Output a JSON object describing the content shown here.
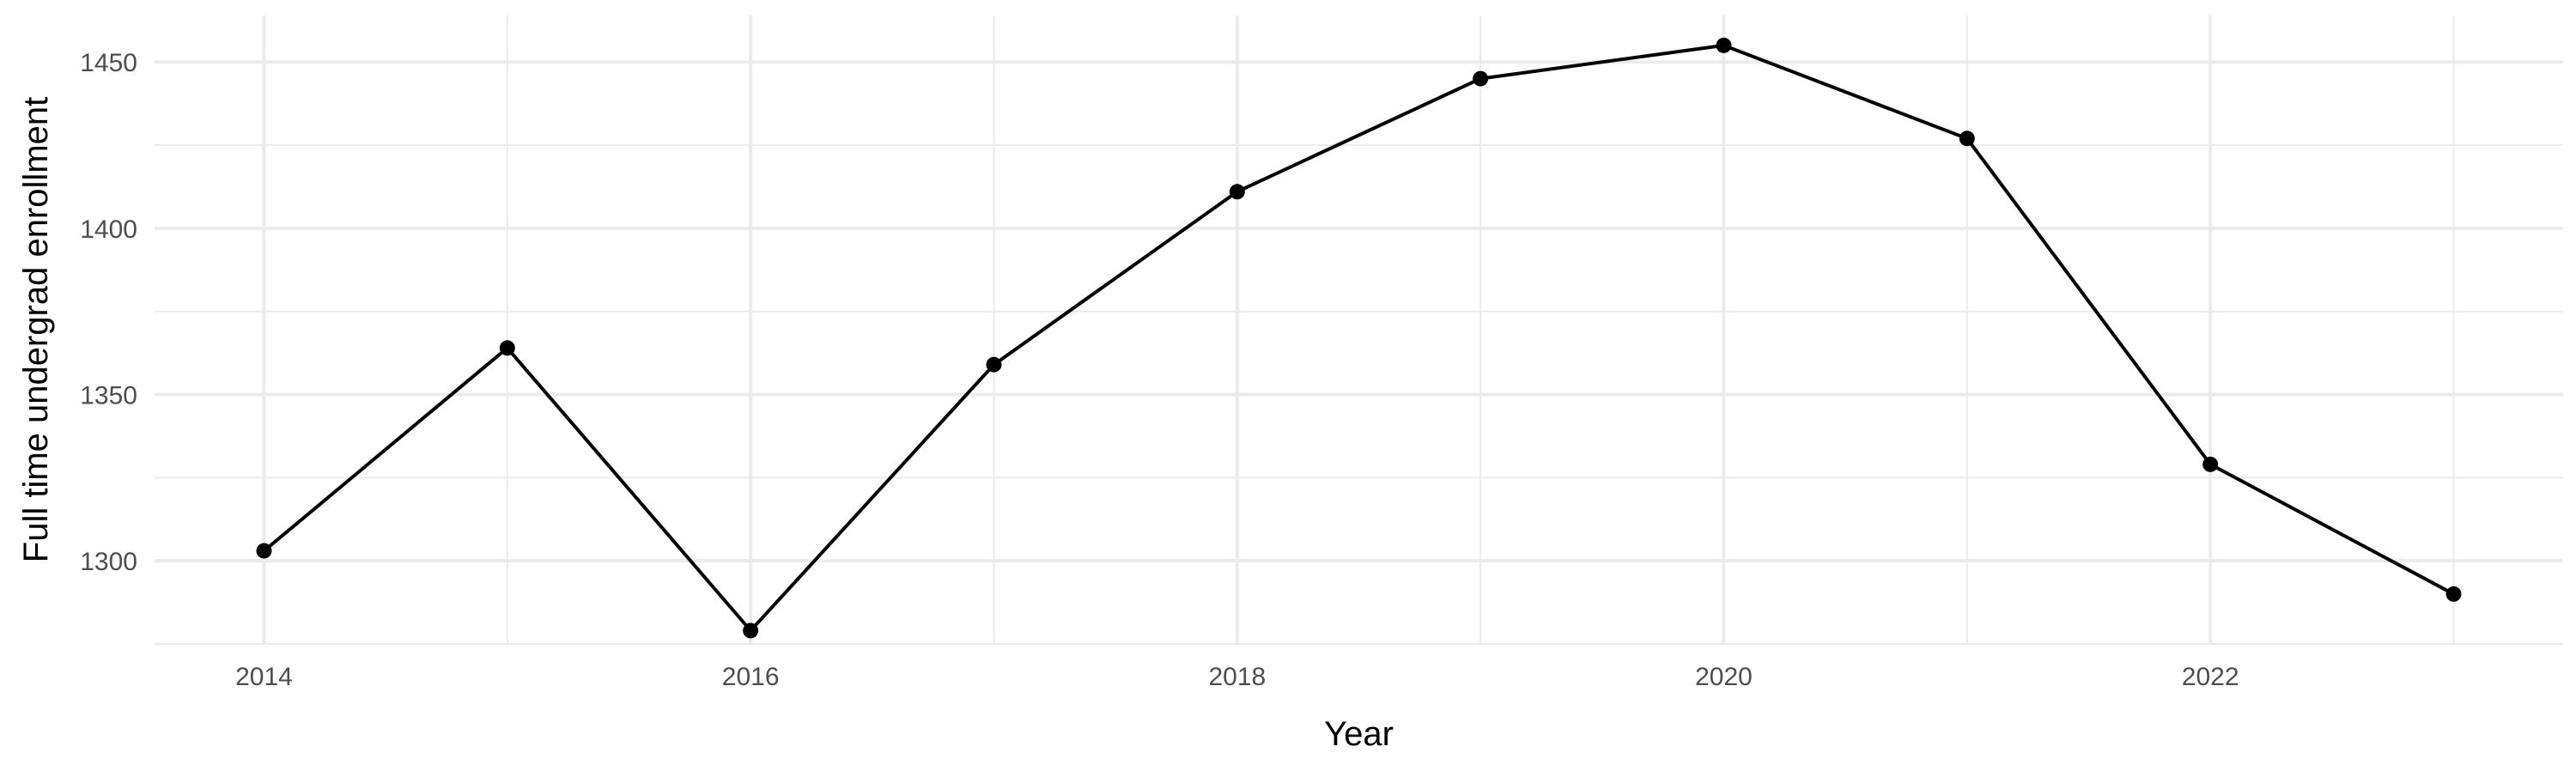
{
  "chart_data": {
    "type": "line",
    "title": "",
    "xlabel": "Year",
    "ylabel": "Full time undergrad enrollment",
    "x": [
      2014,
      2015,
      2016,
      2017,
      2018,
      2019,
      2020,
      2021,
      2022,
      2023
    ],
    "series": [
      {
        "values": [
          1303,
          1364,
          1279,
          1359,
          1411,
          1445,
          1455,
          1427,
          1329,
          1290
        ]
      }
    ],
    "xlim": [
      2013.55,
      2023.45
    ],
    "ylim": [
      1275,
      1464
    ],
    "x_ticks": [
      2014,
      2016,
      2018,
      2020,
      2022
    ],
    "x_tick_labels": [
      "2014",
      "2016",
      "2018",
      "2020",
      "2022"
    ],
    "y_ticks": [
      1300,
      1350,
      1400,
      1450
    ],
    "y_tick_labels": [
      "1300",
      "1350",
      "1400",
      "1450"
    ],
    "grid": true,
    "legend": "none",
    "colors": {
      "line": "#000000",
      "points": "#000000",
      "grid": "#ebebeb",
      "tick_text": "#4d4d4d",
      "background": "#ffffff"
    }
  }
}
